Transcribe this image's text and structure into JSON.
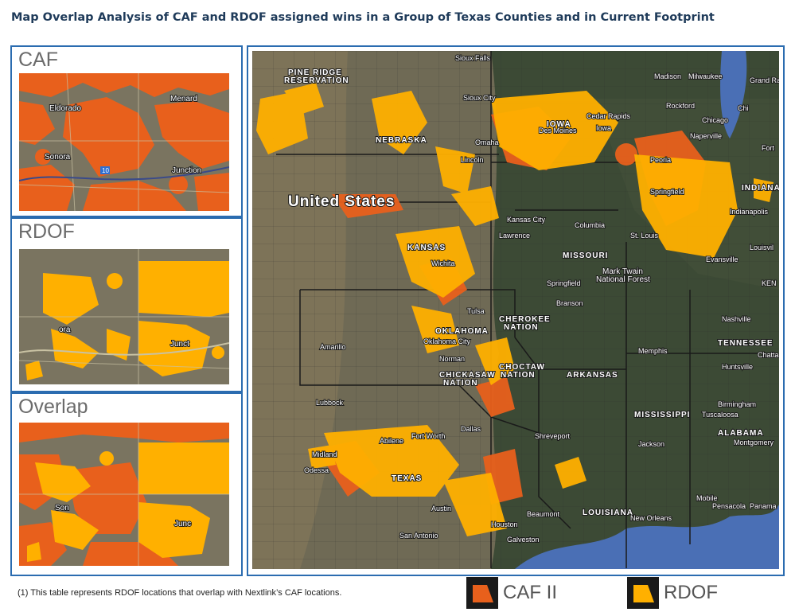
{
  "title": "Map Overlap Analysis of CAF and RDOF assigned wins in a Group of Texas Counties and in Current Footprint",
  "panels": {
    "caf": {
      "label": "CAF",
      "places": [
        "Eldorado",
        "Menard",
        "Sonora",
        "Junction",
        "10"
      ]
    },
    "rdof": {
      "label": "RDOF",
      "places": [
        "ora",
        "Junct"
      ]
    },
    "overlap": {
      "label": "Overlap",
      "places": [
        "Son",
        "Junc"
      ]
    }
  },
  "map": {
    "country_label": "United States",
    "states": [
      "NEBRASKA",
      "IOWA",
      "KANSAS",
      "MISSOURI",
      "OKLAHOMA",
      "ARKANSAS",
      "TEXAS",
      "LOUISIANA",
      "MISSISSIPPI",
      "ALABAMA",
      "TENNESSEE",
      "INDIANA"
    ],
    "regions": [
      "PINE RIDGE",
      "RESERVATION",
      "CHEROKEE",
      "NATION",
      "CHICKASAW",
      "NATION",
      "CHOCTAW",
      "NATION",
      "Mark Twain",
      "National Forest"
    ],
    "cities": [
      "Sioux Falls",
      "Sioux City",
      "Madison",
      "Milwaukee",
      "Grand Ra",
      "Rockford",
      "Chicago",
      "Naperville",
      "Cedar Rapids",
      "Iowa",
      "Des Moines",
      "Peoria",
      "Springfield",
      "Lincoln",
      "Omaha",
      "Indianapolis",
      "Kansas City",
      "Lawrence",
      "Columbia",
      "St. Louis",
      "Evansville",
      "Louisvil",
      "Springfield",
      "Branson",
      "Nashville",
      "Memphis",
      "Huntsville",
      "Chatta",
      "Birmingham",
      "Tuscaloosa",
      "Montgomery",
      "Jackson",
      "Shreveport",
      "Oklahoma City",
      "Norman",
      "Amarillo",
      "Lubbock",
      "Abilene",
      "Fort Worth",
      "Dallas",
      "Midland",
      "Odessa",
      "Austin",
      "San Antonio",
      "Houston",
      "Beaumont",
      "Galveston",
      "New Orleans",
      "Mobile",
      "Pensacola",
      "Panama",
      "Wichita",
      "Fort",
      "Chi",
      "Tulsa",
      "KEN"
    ]
  },
  "footnote": "(1) This table represents RDOF locations that overlap with Nextlink’s CAF locations.",
  "legend": [
    {
      "label": "CAF II",
      "color": "#e8601c"
    },
    {
      "label": "RDOF",
      "color": "#ffb000"
    }
  ],
  "colors": {
    "border": "#2b6cb0",
    "caf": "#e8601c",
    "rdof": "#ffb000",
    "terrain": "#6f6a55",
    "forest": "#3c4a35",
    "water": "#4a6fb5"
  }
}
